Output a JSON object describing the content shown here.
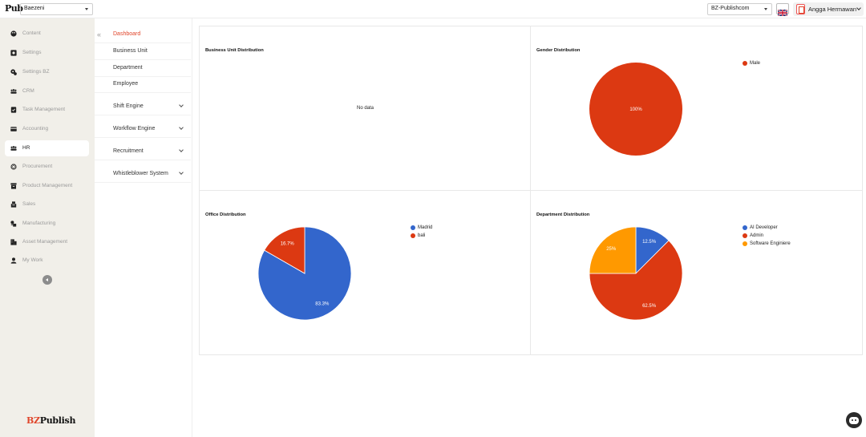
{
  "topbar": {
    "logo_text": "Pub",
    "company": "Baezeni",
    "organization": "BZ-Publishcom",
    "user_name": "Angga Hermawan"
  },
  "sidebar": {
    "items": [
      {
        "label": "Content",
        "icon": "palette-icon"
      },
      {
        "label": "Settings",
        "icon": "settings-icon"
      },
      {
        "label": "Settings BZ",
        "icon": "gear-icon"
      },
      {
        "label": "CRM",
        "icon": "people-icon"
      },
      {
        "label": "Task Management",
        "icon": "task-icon"
      },
      {
        "label": "Accounting",
        "icon": "card-icon"
      },
      {
        "label": "HR",
        "icon": "group-icon"
      },
      {
        "label": "Procurement",
        "icon": "snowflake-icon"
      },
      {
        "label": "Product Management",
        "icon": "box-icon"
      },
      {
        "label": "Sales",
        "icon": "sales-icon"
      },
      {
        "label": "Manufacturing",
        "icon": "factory-icon"
      },
      {
        "label": "Asset Management",
        "icon": "building-icon"
      },
      {
        "label": "My Work",
        "icon": "person-icon"
      }
    ],
    "active": "HR",
    "brand": {
      "prefix": "BZ",
      "suffix": "Publish"
    }
  },
  "submenu": {
    "items": [
      {
        "label": "Dashboard",
        "expandable": false
      },
      {
        "label": "Business Unit",
        "expandable": false
      },
      {
        "label": "Department",
        "expandable": false
      },
      {
        "label": "Employee",
        "expandable": false
      },
      {
        "label": "Shift Engine",
        "expandable": true
      },
      {
        "label": "Workflow Engine",
        "expandable": true
      },
      {
        "label": "Recruitment",
        "expandable": true
      },
      {
        "label": "Whistleblower System",
        "expandable": true
      }
    ],
    "active": "Dashboard"
  },
  "panels": {
    "business_unit": {
      "title": "Business Unit Distribution",
      "empty_text": "No data"
    },
    "gender": {
      "title": "Gender Distribution"
    },
    "office": {
      "title": "Office Distribution"
    },
    "department": {
      "title": "Department Distribution"
    }
  },
  "chart_data": [
    {
      "type": "pie",
      "title": "Gender Distribution",
      "labels": [
        "Male"
      ],
      "values": [
        100
      ],
      "value_labels": [
        "100%"
      ],
      "colors": [
        "#dc3912"
      ],
      "legend_position": "top-right"
    },
    {
      "type": "pie",
      "title": "Office Distribution",
      "labels": [
        "Madrid",
        "bali"
      ],
      "values": [
        83.3,
        16.7
      ],
      "value_labels": [
        "83.3%",
        "16.7%"
      ],
      "colors": [
        "#3366cc",
        "#dc3912"
      ],
      "legend_position": "top-right"
    },
    {
      "type": "pie",
      "title": "Department Distribution",
      "labels": [
        "AI Developer",
        "Admin",
        "Software Enginiere"
      ],
      "values": [
        12.5,
        62.5,
        25
      ],
      "value_labels": [
        "12.5%",
        "62.5%",
        "25%"
      ],
      "colors": [
        "#3366cc",
        "#dc3912",
        "#ff9900"
      ],
      "legend_position": "top-right"
    }
  ]
}
